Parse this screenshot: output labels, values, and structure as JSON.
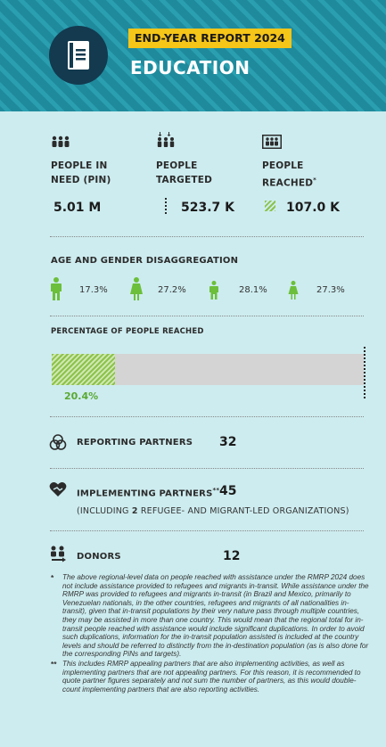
{
  "header": {
    "report_tag": "END-YEAR REPORT 2024",
    "title": "EDUCATION",
    "icon": "book-icon"
  },
  "metrics": {
    "pin": {
      "label_line1": "PEOPLE IN",
      "label_line2": "NEED (PIN)",
      "value": "5.01 M",
      "icon": "people-group-icon"
    },
    "targeted": {
      "label_line1": "PEOPLE",
      "label_line2": "TARGETED",
      "value": "523.7 K",
      "icon": "people-targeted-icon"
    },
    "reached": {
      "label_line1": "PEOPLE",
      "label_line2": "REACHED",
      "label_mark": "*",
      "value": "107.0 K",
      "icon": "people-reached-icon"
    }
  },
  "age_gender": {
    "heading": "AGE AND GENDER DISAGGREGATION",
    "items": [
      {
        "icon": "man-icon",
        "value": "17.3%"
      },
      {
        "icon": "woman-icon",
        "value": "27.2%"
      },
      {
        "icon": "boy-icon",
        "value": "28.1%"
      },
      {
        "icon": "girl-icon",
        "value": "27.3%"
      }
    ]
  },
  "percentage": {
    "heading": "PERCENTAGE OF PEOPLE REACHED",
    "value_label": "20.4%",
    "fraction": 0.204
  },
  "partners": {
    "reporting": {
      "label": "REPORTING PARTNERS",
      "value": "32",
      "icon": "interlinked-circles-icon"
    },
    "implementing": {
      "label": "IMPLEMENTING PARTNERS",
      "label_mark": "**",
      "value": "45",
      "note_prefix": "(INCLUDING ",
      "note_bold": "2",
      "note_suffix": " REFUGEE- AND MIGRANT-LED ORGANIZATIONS)",
      "icon": "handshake-heart-icon"
    },
    "donors": {
      "label": "DONORS",
      "value": "12",
      "icon": "donors-icon"
    }
  },
  "footnotes": [
    {
      "mark": "*",
      "text": "The above regional-level data on people reached with assistance under the RMRP 2024 does not include assistance provided to refugees and migrants in-transit. While assistance under the RMRP was provided to refugees and migrants in-transit (in Brazil and Mexico, primarily to Venezuelan nationals, in the other countries, refugees and migrants of all nationalities in-transit), given that in-transit populations by their very nature pass through multiple countries, they may be assisted in more than one country. This would mean that the regional total for in-transit people reached with assistance would include significant duplications. In order to avoid such duplications, information for the in-transit population assisted is included at the country levels and should be referred to distinctly from the in-destination population (as is also done for the corresponding PiNs and targets)."
    },
    {
      "mark": "**",
      "text": "This includes RMRP appealing partners that are also implementing activities, as well as implementing partners that are not appealing partners. For this reason, it is recommended to quote partner figures separately and not sum the number of partners, as this would double-count implementing partners that are also reporting activities."
    }
  ],
  "colors": {
    "header_bg": "#1f8a9c",
    "page_bg": "#cdecef",
    "tag_bg": "#f5c518",
    "accent_green": "#8cc34a",
    "dark_navy": "#133a4f"
  }
}
